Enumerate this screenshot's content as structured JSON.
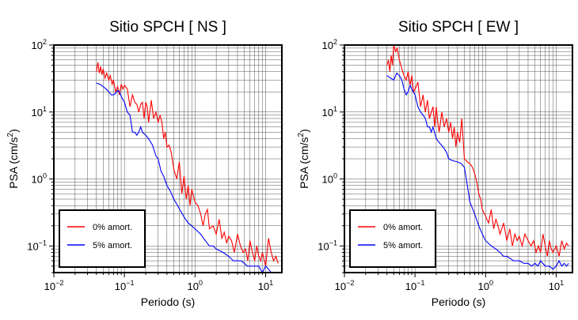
{
  "chart_data": [
    {
      "type": "line",
      "title": "Sitio SPCH [ NS ]",
      "xlabel": "Periodo (s)",
      "ylabel_main": "PSA (cm/s",
      "ylabel_sup": "2",
      "ylabel_close": ")",
      "x_scale": "log",
      "y_scale": "log",
      "xlim": [
        0.01,
        17
      ],
      "ylim": [
        0.04,
        100
      ],
      "grid": true,
      "legend_position": "bottom-left",
      "xticks": [
        {
          "value": 0.01,
          "base": "10",
          "exp": "−2"
        },
        {
          "value": 0.1,
          "base": "10",
          "exp": "−1"
        },
        {
          "value": 1,
          "base": "10",
          "exp": "0"
        },
        {
          "value": 10,
          "base": "10",
          "exp": "1"
        }
      ],
      "yticks": [
        {
          "value": 0.1,
          "base": "10",
          "exp": "−1"
        },
        {
          "value": 1,
          "base": "10",
          "exp": "0"
        },
        {
          "value": 10,
          "base": "10",
          "exp": "1"
        },
        {
          "value": 100,
          "base": "10",
          "exp": "2"
        }
      ],
      "series": [
        {
          "name": "0% amort.",
          "color": "#ff0000",
          "x": [
            0.04,
            0.042,
            0.044,
            0.046,
            0.048,
            0.05,
            0.053,
            0.056,
            0.06,
            0.063,
            0.067,
            0.07,
            0.075,
            0.08,
            0.085,
            0.09,
            0.095,
            0.1,
            0.11,
            0.12,
            0.13,
            0.14,
            0.15,
            0.16,
            0.17,
            0.18,
            0.19,
            0.2,
            0.21,
            0.22,
            0.24,
            0.26,
            0.28,
            0.3,
            0.32,
            0.34,
            0.36,
            0.38,
            0.4,
            0.43,
            0.46,
            0.5,
            0.55,
            0.6,
            0.65,
            0.7,
            0.75,
            0.8,
            0.85,
            0.9,
            1.0,
            1.1,
            1.2,
            1.3,
            1.4,
            1.5,
            1.6,
            1.8,
            2.0,
            2.2,
            2.4,
            2.6,
            2.8,
            3.0,
            3.3,
            3.6,
            4.0,
            4.4,
            4.8,
            5.2,
            5.6,
            6.0,
            6.5,
            7.0,
            7.5,
            8.0,
            8.5,
            9.0,
            10,
            11,
            12,
            13,
            14,
            15
          ],
          "values": [
            40,
            55,
            38,
            48,
            36,
            44,
            32,
            38,
            30,
            35,
            26,
            30,
            20,
            24,
            18,
            26,
            22,
            25,
            22,
            12,
            18,
            14,
            13,
            10,
            13,
            14,
            8,
            14,
            12,
            7,
            15,
            8,
            10,
            7,
            9,
            7,
            4,
            5,
            3,
            3.2,
            2.5,
            1.4,
            1.0,
            1.8,
            0.6,
            1.1,
            0.5,
            0.8,
            0.4,
            0.7,
            0.45,
            0.4,
            0.3,
            0.2,
            0.3,
            0.35,
            0.18,
            0.2,
            0.15,
            0.25,
            0.13,
            0.16,
            0.11,
            0.14,
            0.12,
            0.08,
            0.15,
            0.1,
            0.08,
            0.09,
            0.06,
            0.12,
            0.08,
            0.06,
            0.1,
            0.07,
            0.06,
            0.08,
            0.05,
            0.13,
            0.08,
            0.06,
            0.07,
            0.055
          ]
        },
        {
          "name": "5% amort.",
          "color": "#0000ff",
          "x": [
            0.04,
            0.045,
            0.05,
            0.055,
            0.06,
            0.065,
            0.07,
            0.075,
            0.08,
            0.085,
            0.09,
            0.1,
            0.11,
            0.12,
            0.13,
            0.14,
            0.15,
            0.16,
            0.17,
            0.18,
            0.2,
            0.22,
            0.25,
            0.28,
            0.3,
            0.33,
            0.36,
            0.4,
            0.45,
            0.5,
            0.55,
            0.6,
            0.7,
            0.8,
            0.9,
            1.0,
            1.2,
            1.4,
            1.6,
            1.8,
            2.0,
            2.5,
            3.0,
            3.5,
            4.0,
            4.5,
            5.0,
            5.5,
            6.0,
            7.0,
            8.0,
            9.0,
            10,
            11,
            12,
            13,
            14,
            15
          ],
          "values": [
            27,
            26,
            24,
            22,
            20,
            18,
            18,
            19,
            21,
            20,
            17,
            14,
            10,
            9,
            5,
            5,
            4.5,
            5,
            6,
            5,
            4.5,
            4,
            3.2,
            2.2,
            2.0,
            1.3,
            1.1,
            0.8,
            0.65,
            0.5,
            0.42,
            0.36,
            0.27,
            0.22,
            0.2,
            0.18,
            0.15,
            0.12,
            0.1,
            0.1,
            0.09,
            0.08,
            0.07,
            0.06,
            0.06,
            0.06,
            0.055,
            0.05,
            0.05,
            0.05,
            0.05,
            0.04,
            0.05,
            0.045,
            0.04,
            0.035,
            0.04,
            0.035
          ]
        }
      ]
    },
    {
      "type": "line",
      "title": "Sitio SPCH [ EW ]",
      "xlabel": "Periodo (s)",
      "ylabel_main": "PSA (cm/s",
      "ylabel_sup": "2",
      "ylabel_close": ")",
      "x_scale": "log",
      "y_scale": "log",
      "xlim": [
        0.01,
        17
      ],
      "ylim": [
        0.04,
        100
      ],
      "grid": true,
      "legend_position": "bottom-left",
      "xticks": [
        {
          "value": 0.01,
          "base": "10",
          "exp": "−2"
        },
        {
          "value": 0.1,
          "base": "10",
          "exp": "−1"
        },
        {
          "value": 1,
          "base": "10",
          "exp": "0"
        },
        {
          "value": 10,
          "base": "10",
          "exp": "1"
        }
      ],
      "yticks": [
        {
          "value": 0.1,
          "base": "10",
          "exp": "−1"
        },
        {
          "value": 1,
          "base": "10",
          "exp": "0"
        },
        {
          "value": 10,
          "base": "10",
          "exp": "1"
        },
        {
          "value": 100,
          "base": "10",
          "exp": "2"
        }
      ],
      "series": [
        {
          "name": "0% amort.",
          "color": "#ff0000",
          "x": [
            0.04,
            0.042,
            0.044,
            0.046,
            0.048,
            0.05,
            0.053,
            0.056,
            0.06,
            0.063,
            0.067,
            0.07,
            0.075,
            0.08,
            0.085,
            0.09,
            0.095,
            0.1,
            0.11,
            0.12,
            0.13,
            0.14,
            0.15,
            0.16,
            0.17,
            0.18,
            0.19,
            0.2,
            0.21,
            0.22,
            0.24,
            0.26,
            0.28,
            0.3,
            0.32,
            0.34,
            0.36,
            0.38,
            0.4,
            0.43,
            0.46,
            0.5,
            0.55,
            0.6,
            0.65,
            0.7,
            0.75,
            0.8,
            0.85,
            0.9,
            1.0,
            1.1,
            1.2,
            1.3,
            1.4,
            1.5,
            1.6,
            1.8,
            2.0,
            2.2,
            2.4,
            2.6,
            2.8,
            3.0,
            3.3,
            3.6,
            4.0,
            4.4,
            4.8,
            5.2,
            5.6,
            6.0,
            6.5,
            7.0,
            7.5,
            8.0,
            8.5,
            9.0,
            10,
            11,
            12,
            13,
            14,
            15
          ],
          "values": [
            50,
            60,
            40,
            70,
            50,
            100,
            80,
            90,
            60,
            50,
            40,
            35,
            30,
            40,
            25,
            35,
            20,
            22,
            28,
            12,
            18,
            10,
            15,
            8,
            10,
            12,
            6,
            12,
            7,
            5,
            10,
            6,
            8,
            5,
            7,
            4,
            6,
            3,
            5,
            3.5,
            8,
            2,
            1.8,
            1.7,
            1.5,
            1.2,
            0.9,
            0.6,
            0.5,
            0.35,
            0.28,
            0.22,
            0.35,
            0.18,
            0.25,
            0.2,
            0.15,
            0.22,
            0.12,
            0.18,
            0.1,
            0.15,
            0.12,
            0.14,
            0.1,
            0.15,
            0.12,
            0.1,
            0.12,
            0.08,
            0.1,
            0.08,
            0.15,
            0.1,
            0.07,
            0.12,
            0.09,
            0.08,
            0.1,
            0.07,
            0.12,
            0.09,
            0.11,
            0.1
          ]
        },
        {
          "name": "5% amort.",
          "color": "#0000ff",
          "x": [
            0.04,
            0.045,
            0.05,
            0.055,
            0.06,
            0.065,
            0.07,
            0.075,
            0.08,
            0.085,
            0.09,
            0.1,
            0.11,
            0.12,
            0.13,
            0.14,
            0.15,
            0.16,
            0.17,
            0.18,
            0.2,
            0.22,
            0.25,
            0.28,
            0.3,
            0.33,
            0.36,
            0.4,
            0.45,
            0.5,
            0.55,
            0.6,
            0.7,
            0.8,
            0.9,
            1.0,
            1.2,
            1.4,
            1.6,
            1.8,
            2.0,
            2.5,
            3.0,
            3.5,
            4.0,
            4.5,
            5.0,
            5.5,
            6.0,
            7.0,
            8.0,
            9.0,
            10,
            11,
            12,
            13,
            14,
            15
          ],
          "values": [
            35,
            32,
            30,
            38,
            35,
            30,
            22,
            18,
            20,
            25,
            22,
            18,
            12,
            10,
            9,
            8,
            6,
            6,
            5,
            6,
            4,
            3.5,
            3,
            2.5,
            2.0,
            1.9,
            1.85,
            1.8,
            1.7,
            1.5,
            0.8,
            0.45,
            0.3,
            0.2,
            0.15,
            0.12,
            0.1,
            0.09,
            0.08,
            0.07,
            0.07,
            0.06,
            0.06,
            0.055,
            0.055,
            0.05,
            0.055,
            0.05,
            0.06,
            0.05,
            0.05,
            0.045,
            0.05,
            0.06,
            0.05,
            0.055,
            0.05,
            0.055
          ]
        }
      ]
    }
  ]
}
